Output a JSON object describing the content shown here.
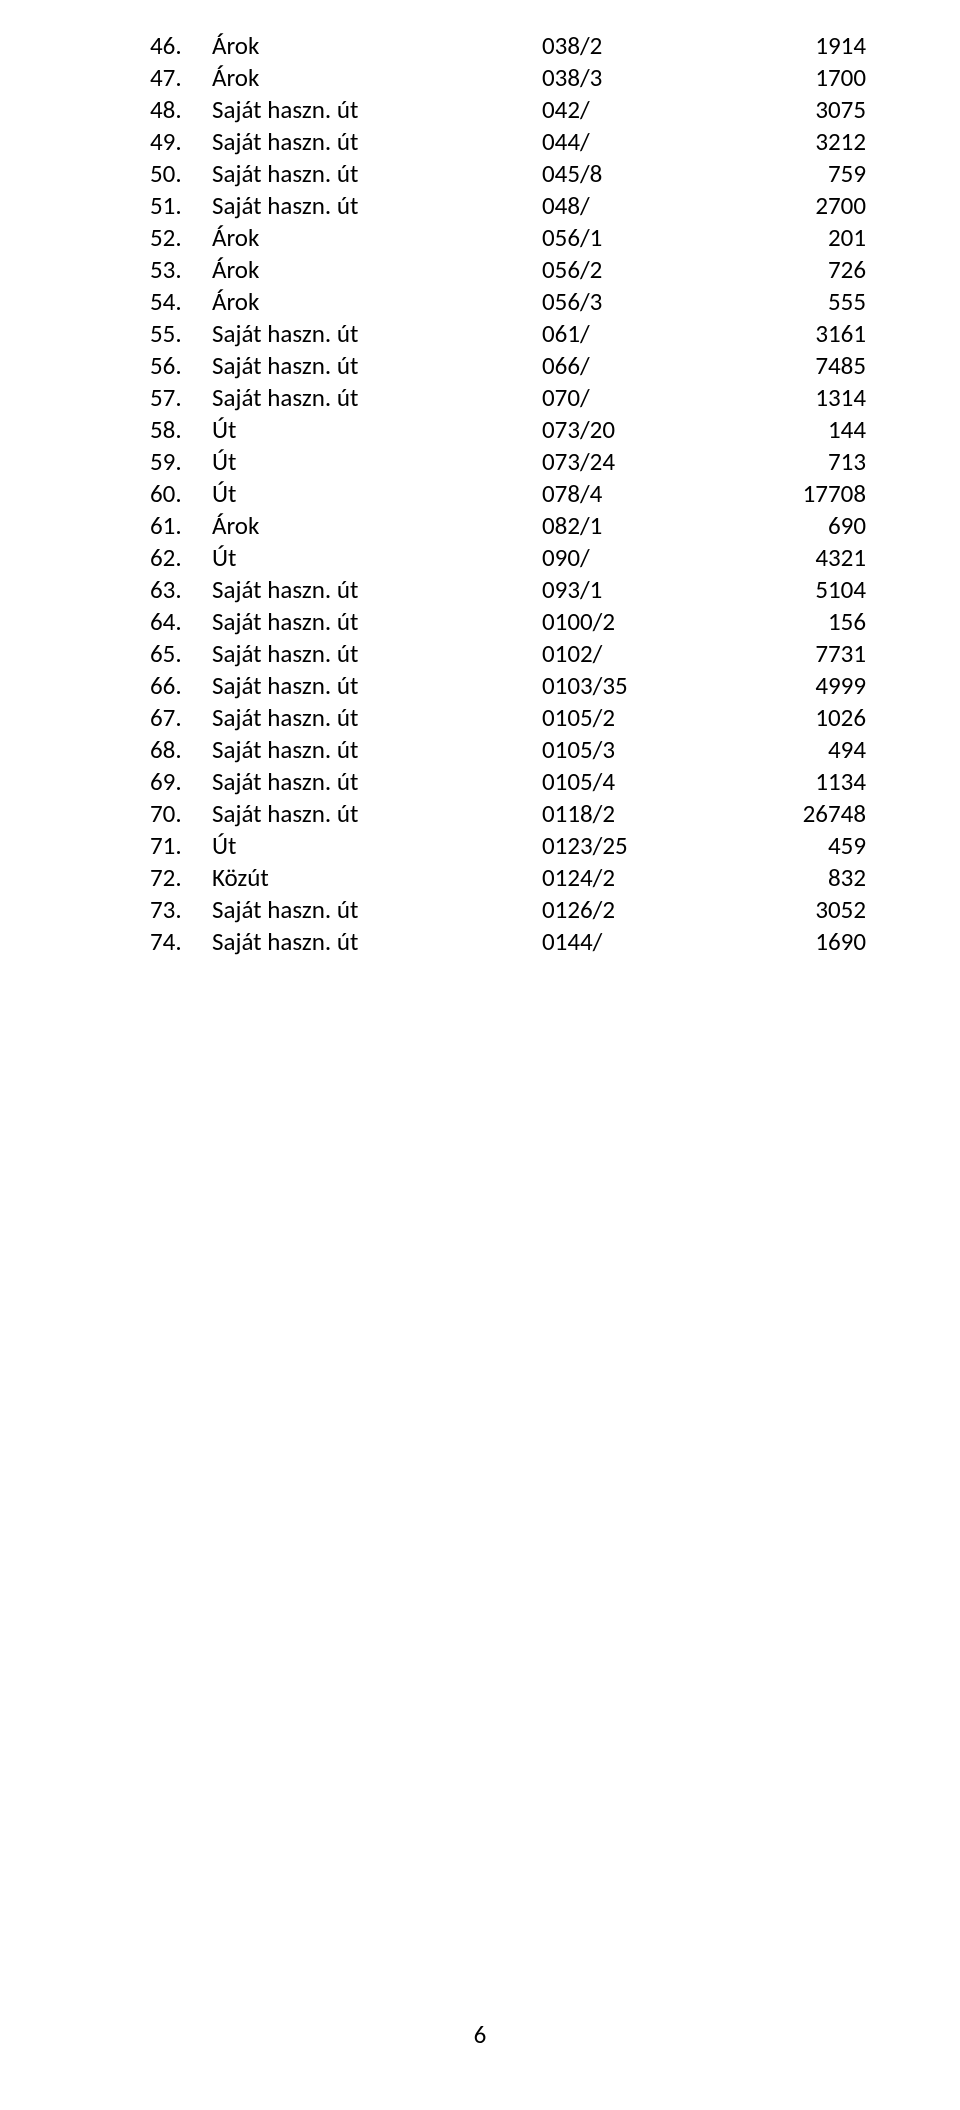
{
  "rows": [
    {
      "num": "46.",
      "desc": "Árok",
      "code": "038/2",
      "val": "1914"
    },
    {
      "num": "47.",
      "desc": "Árok",
      "code": "038/3",
      "val": "1700"
    },
    {
      "num": "48.",
      "desc": "Saját haszn. út",
      "code": "042/",
      "val": "3075"
    },
    {
      "num": "49.",
      "desc": "Saját haszn. út",
      "code": "044/",
      "val": "3212"
    },
    {
      "num": "50.",
      "desc": "Saját haszn. út",
      "code": "045/8",
      "val": "759"
    },
    {
      "num": "51.",
      "desc": "Saját haszn. út",
      "code": "048/",
      "val": "2700"
    },
    {
      "num": "52.",
      "desc": "Árok",
      "code": "056/1",
      "val": "201"
    },
    {
      "num": "53.",
      "desc": "Árok",
      "code": "056/2",
      "val": "726"
    },
    {
      "num": "54.",
      "desc": "Árok",
      "code": "056/3",
      "val": "555"
    },
    {
      "num": "55.",
      "desc": "Saját haszn. út",
      "code": "061/",
      "val": "3161"
    },
    {
      "num": "56.",
      "desc": "Saját haszn. út",
      "code": "066/",
      "val": "7485"
    },
    {
      "num": "57.",
      "desc": "Saját haszn. út",
      "code": "070/",
      "val": "1314"
    },
    {
      "num": "58.",
      "desc": "Út",
      "code": "073/20",
      "val": "144"
    },
    {
      "num": "59.",
      "desc": "Út",
      "code": "073/24",
      "val": "713"
    },
    {
      "num": "60.",
      "desc": "Út",
      "code": "078/4",
      "val": "17708"
    },
    {
      "num": "61.",
      "desc": "Árok",
      "code": "082/1",
      "val": "690"
    },
    {
      "num": "62.",
      "desc": "Út",
      "code": "090/",
      "val": "4321"
    },
    {
      "num": "63.",
      "desc": "Saját haszn. út",
      "code": "093/1",
      "val": "5104"
    },
    {
      "num": "64.",
      "desc": "Saját haszn. út",
      "code": "0100/2",
      "val": "156"
    },
    {
      "num": "65.",
      "desc": "Saját haszn. út",
      "code": "0102/",
      "val": "7731"
    },
    {
      "num": "66.",
      "desc": "Saját haszn. út",
      "code": "0103/35",
      "val": "4999"
    },
    {
      "num": "67.",
      "desc": "Saját haszn. út",
      "code": "0105/2",
      "val": "1026"
    },
    {
      "num": "68.",
      "desc": "Saját haszn. út",
      "code": "0105/3",
      "val": "494"
    },
    {
      "num": "69.",
      "desc": "Saját haszn. út",
      "code": "0105/4",
      "val": "1134"
    },
    {
      "num": "70.",
      "desc": "Saját haszn. út",
      "code": "0118/2",
      "val": "26748"
    },
    {
      "num": "71.",
      "desc": "Út",
      "code": "0123/25",
      "val": "459"
    },
    {
      "num": "72.",
      "desc": "Közút",
      "code": "0124/2",
      "val": "832"
    },
    {
      "num": "73.",
      "desc": "Saját haszn. út",
      "code": "0126/2",
      "val": "3052"
    },
    {
      "num": "74.",
      "desc": "Saját haszn. út",
      "code": "0144/",
      "val": "1690"
    }
  ],
  "page_number": "6"
}
